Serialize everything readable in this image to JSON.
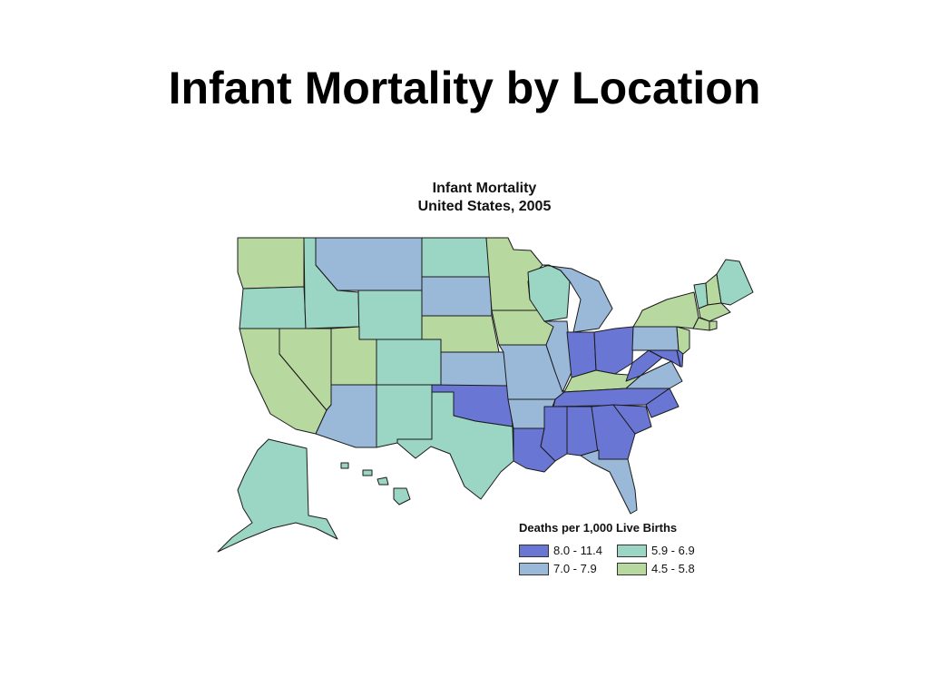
{
  "slide": {
    "title": "Infant Mortality by Location"
  },
  "map": {
    "title_line1": "Infant Mortality",
    "title_line2": "United States, 2005",
    "legend_title": "Deaths per 1,000 Live Births",
    "classes": [
      {
        "id": "c1",
        "label": "8.0 - 11.4",
        "color": "#6a76d4"
      },
      {
        "id": "c3",
        "label": "5.9 - 6.9",
        "color": "#9bd6c4"
      },
      {
        "id": "c2",
        "label": "7.0 - 7.9",
        "color": "#9ab9d8"
      },
      {
        "id": "c4",
        "label": "4.5 - 5.8",
        "color": "#b7d89e"
      }
    ],
    "states": {
      "WA": "c4",
      "OR": "c3",
      "CA": "c4",
      "NV": "c4",
      "ID": "c3",
      "MT": "c2",
      "WY": "c3",
      "UT": "c4",
      "CO": "c3",
      "AZ": "c2",
      "NM": "c3",
      "ND": "c3",
      "SD": "c2",
      "NE": "c4",
      "KS": "c2",
      "OK": "c1",
      "TX": "c3",
      "MN": "c4",
      "IA": "c4",
      "MO": "c2",
      "AR": "c2",
      "LA": "c1",
      "WI": "c3",
      "IL": "c2",
      "MI": "c2",
      "IN": "c1",
      "OH": "c1",
      "KY": "c4",
      "TN": "c1",
      "MS": "c1",
      "AL": "c1",
      "GA": "c1",
      "FL": "c2",
      "SC": "c1",
      "NC": "c1",
      "VA": "c2",
      "WV": "c1",
      "PA": "c2",
      "NY": "c4",
      "VT": "c3",
      "NH": "c4",
      "ME": "c3",
      "MA": "c4",
      "CT": "c4",
      "RI": "c4",
      "NJ": "c4",
      "DE": "c1",
      "MD": "c1",
      "AK": "c3",
      "HI": "c3"
    }
  }
}
